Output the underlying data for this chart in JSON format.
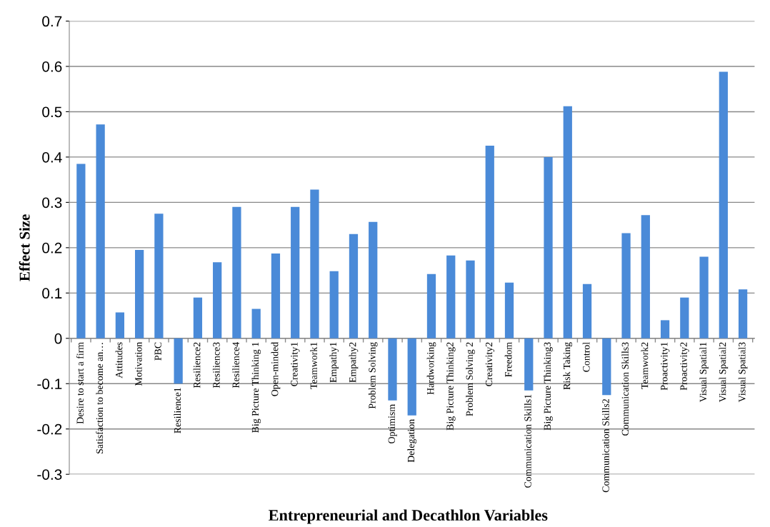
{
  "chart_data": {
    "type": "bar",
    "xlabel": "Entrepreneurial and Decathlon Variables",
    "ylabel": "Effect Size",
    "categories": [
      "Desire to start a firm",
      "Satisfaction to become an…",
      "Attitudes",
      "Motivation",
      "PBC",
      "Resilience1",
      "Resilience2",
      "Resilience3",
      "Resilience4",
      "Big Picture Thinking 1",
      "Open-minded",
      "Creativity1",
      "Teamwork1",
      "Empathy1",
      "Empathy2",
      "Problem Solving",
      "Optimism",
      "Delegation",
      "Hardworking",
      "Big Picture Thinking2",
      "Problem Solving 2",
      "Creativity2",
      "Freedom",
      "Communication Skills1",
      "Big Picture Thinking3",
      "Risk Taking",
      "Control",
      "Communication Skills2",
      "Communication Skills3",
      "Teamwork2",
      "Proactivity1",
      "Proactivity2",
      "Visual Spatial1",
      "Visual Spatial2",
      "Visual Spatial3"
    ],
    "values": [
      0.385,
      0.472,
      0.057,
      0.195,
      0.275,
      -0.1,
      0.09,
      0.168,
      0.29,
      0.065,
      0.187,
      0.29,
      0.328,
      0.148,
      0.23,
      0.257,
      -0.137,
      -0.17,
      0.142,
      0.183,
      0.172,
      0.425,
      0.123,
      -0.115,
      0.4,
      0.512,
      0.12,
      -0.125,
      0.232,
      0.272,
      0.04,
      0.09,
      0.18,
      0.588,
      0.108
    ],
    "color": "#4a8ad8",
    "ylim": [
      -0.3,
      0.7
    ],
    "yticks": [
      -0.3,
      -0.2,
      -0.1,
      0,
      0.1,
      0.2,
      0.3,
      0.4,
      0.5,
      0.6,
      0.7
    ],
    "grid": "y",
    "legend": false
  }
}
